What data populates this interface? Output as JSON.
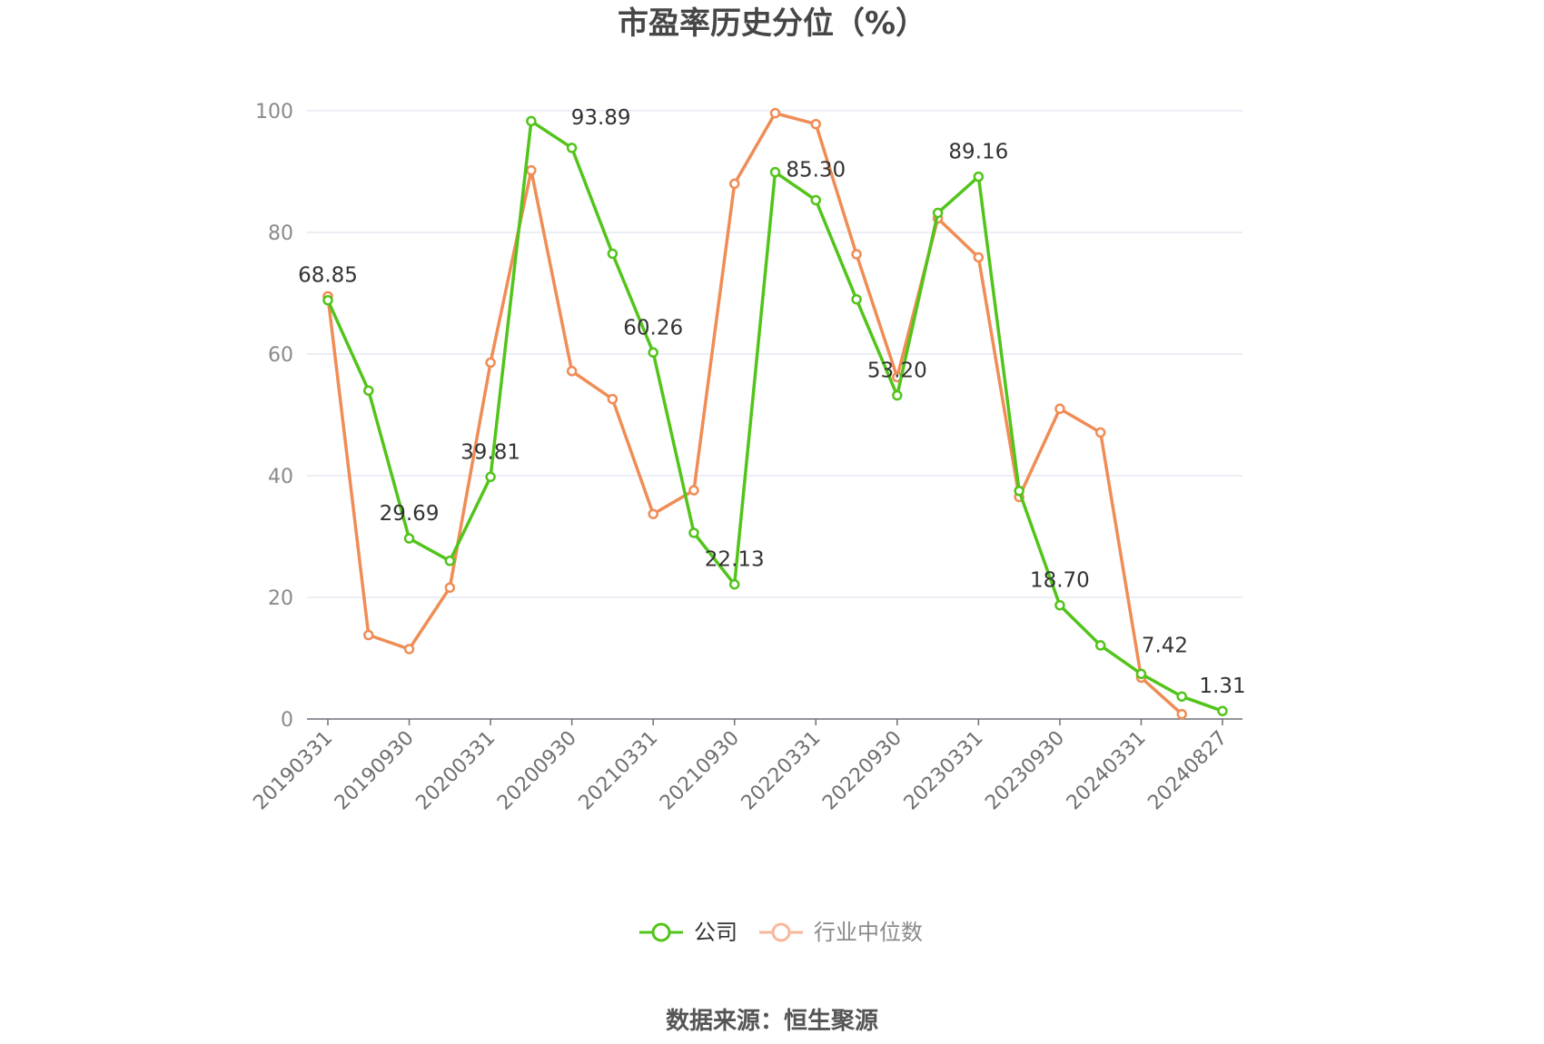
{
  "chart_data": {
    "type": "line",
    "title": "市盈率历史分位（%）",
    "source": "数据来源：恒生聚源",
    "ylim": [
      0,
      100
    ],
    "yticks": [
      0,
      20,
      40,
      60,
      80,
      100
    ],
    "x": [
      "20190331",
      "20190630",
      "20190930",
      "20191231",
      "20200331",
      "20200630",
      "20200930",
      "20201231",
      "20210331",
      "20210630",
      "20210930",
      "20211231",
      "20220331",
      "20220630",
      "20220930",
      "20221231",
      "20230331",
      "20230630",
      "20230930",
      "20231231",
      "20240331",
      "20240630",
      "20240827"
    ],
    "x_tick_labels": [
      "20190331",
      "20190930",
      "20200331",
      "20200930",
      "20210331",
      "20210930",
      "20220331",
      "20220930",
      "20230331",
      "20230930",
      "20240331",
      "20240827"
    ],
    "x_tick_indices": [
      0,
      2,
      4,
      6,
      8,
      10,
      12,
      14,
      16,
      18,
      20,
      22
    ],
    "grid": true,
    "legend_position": "bottom",
    "series": [
      {
        "name": "公司",
        "color": "#52c41a",
        "values": [
          68.85,
          54.0,
          29.69,
          26.0,
          39.81,
          98.3,
          93.89,
          76.5,
          60.26,
          30.6,
          22.13,
          89.9,
          85.3,
          69.0,
          53.2,
          83.2,
          89.16,
          37.5,
          18.7,
          12.1,
          7.42,
          3.7,
          1.31
        ],
        "labels": {
          "0": "68.85",
          "2": "29.69",
          "4": "39.81",
          "6": "93.89",
          "8": "60.26",
          "10": "22.13",
          "12": "85.30",
          "14": "53.20",
          "16": "89.16",
          "18": "18.70",
          "20": "7.42",
          "22": "1.31"
        }
      },
      {
        "name": "行业中位数",
        "color": "#f08c55",
        "values": [
          69.5,
          13.8,
          11.5,
          21.6,
          58.6,
          90.2,
          57.2,
          52.6,
          33.7,
          37.6,
          88.0,
          99.6,
          97.8,
          76.4,
          56.2,
          82.3,
          75.9,
          36.5,
          51.0,
          47.1,
          6.8,
          0.8,
          null
        ]
      }
    ]
  }
}
